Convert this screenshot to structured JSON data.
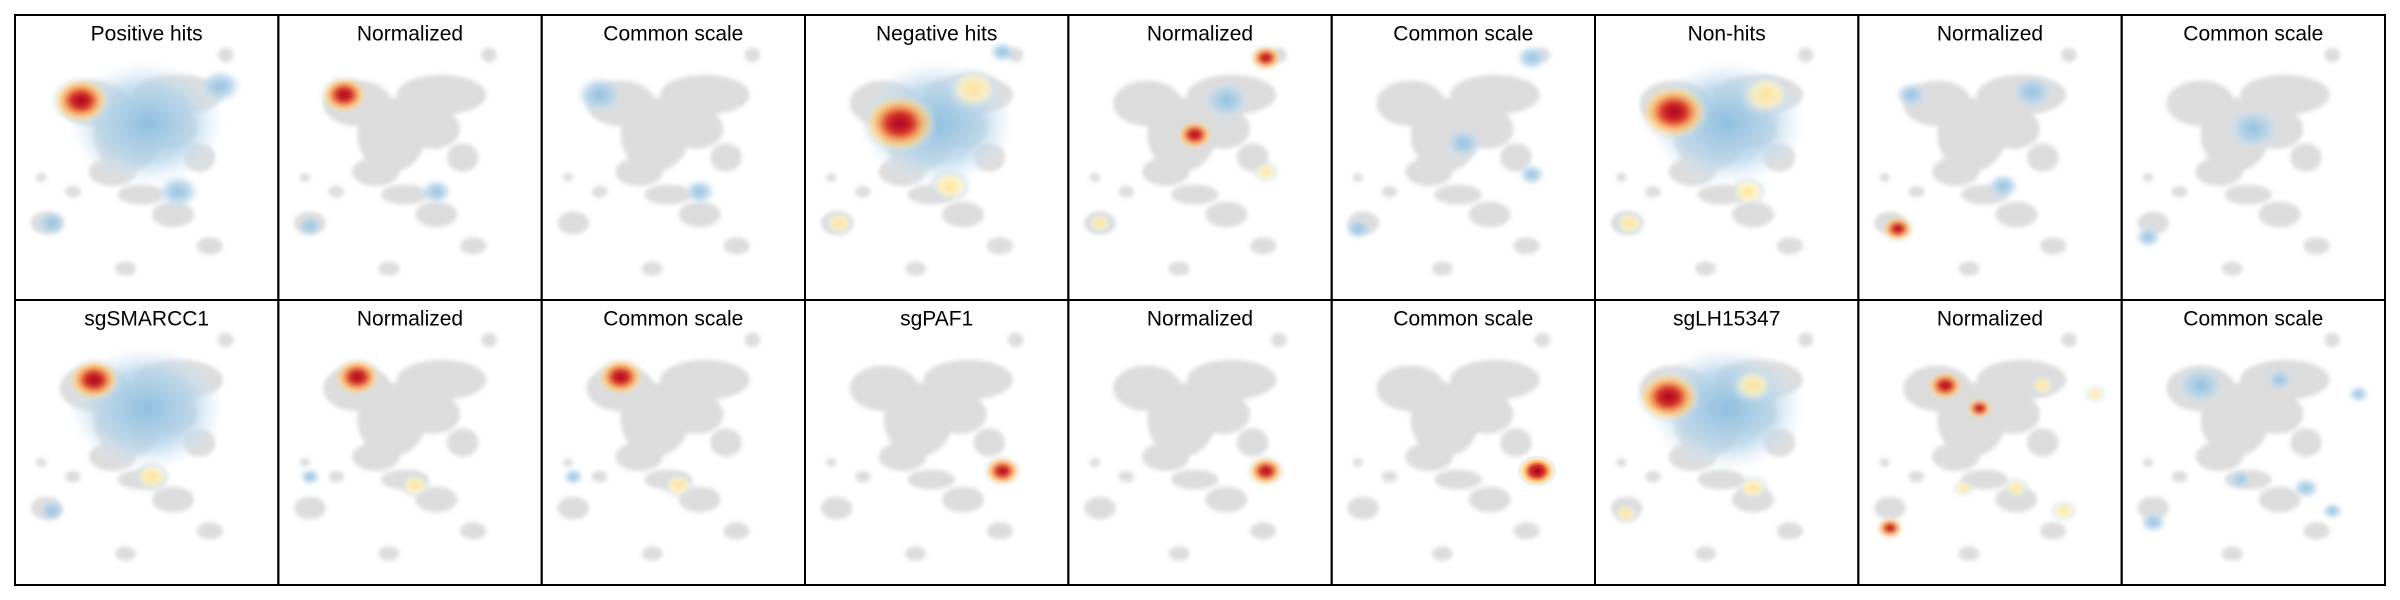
{
  "rows": [
    [
      "Positive hits",
      "Normalized",
      "Common scale",
      "Negative hits",
      "Normalized",
      "Common scale",
      "Non-hits",
      "Normalized",
      "Common scale"
    ],
    [
      "sgSMARCC1",
      "Normalized",
      "Common scale",
      "sgPAF1",
      "Normalized",
      "Common scale",
      "sgLH15347",
      "Normalized",
      "Common scale"
    ]
  ]
}
